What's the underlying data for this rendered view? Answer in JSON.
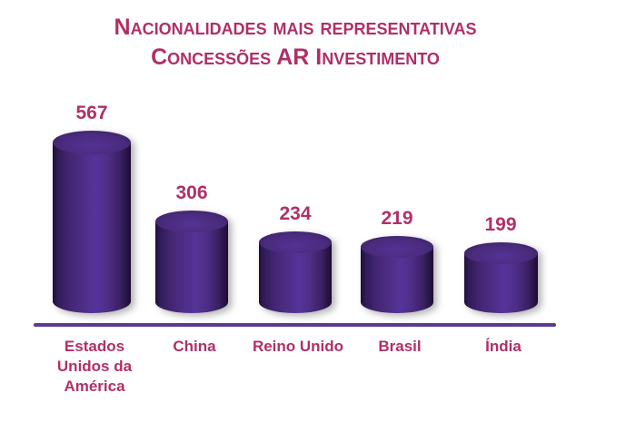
{
  "page": {
    "background": "#ffffff"
  },
  "title": {
    "line1": "Nacionalidades mais representativas",
    "line2": "Concessões AR Investimento",
    "color": "#b02f68"
  },
  "chart_data": {
    "type": "bar",
    "style": "3d-cylinder",
    "title": "Nacionalidades mais representativas",
    "subtitle": "Concessões AR Investimento",
    "categories": [
      "Estados Unidos da América",
      "China",
      "Reino Unido",
      "Brasil",
      "Índia"
    ],
    "categories_display": [
      [
        "Estados",
        "Unidos da",
        "América"
      ],
      [
        "China"
      ],
      [
        "Reino Unido"
      ],
      [
        "Brasil"
      ],
      [
        "Índia"
      ]
    ],
    "values": [
      567,
      306,
      234,
      219,
      199
    ],
    "data_labels": [
      "567",
      "306",
      "234",
      "219",
      "199"
    ],
    "xlabel": "",
    "ylabel": "",
    "ylim": [
      0,
      600
    ],
    "grid": false,
    "legend": "none",
    "data_labels_shown": true,
    "colors": {
      "cylinder_fill": "#4b2c80",
      "cylinder_dark_edge": "#1e0e38",
      "cylinder_highlight": "#55339a",
      "value_label": "#b02f68",
      "category_label": "#b02f68",
      "baseline_axis": "#5b3b91"
    }
  }
}
